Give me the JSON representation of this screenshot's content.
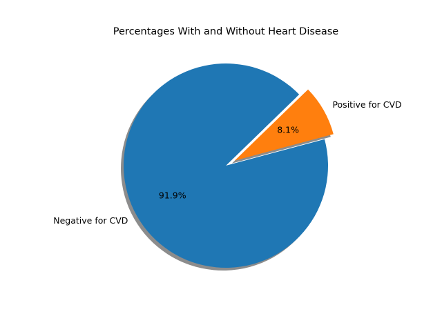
{
  "chart_data": {
    "type": "pie",
    "title": "Percentages With and Without Heart Disease",
    "slices": [
      {
        "label": "Positive for CVD",
        "value": 8.1,
        "pct_label": "8.1%",
        "color": "#ff7f0e",
        "explode": 0.1
      },
      {
        "label": "Negative for CVD",
        "value": 91.9,
        "pct_label": "91.9%",
        "color": "#1f77b4",
        "explode": 0
      }
    ],
    "start_angle_deg": 15,
    "counterclockwise": true,
    "shadow": true,
    "legend": "none"
  }
}
